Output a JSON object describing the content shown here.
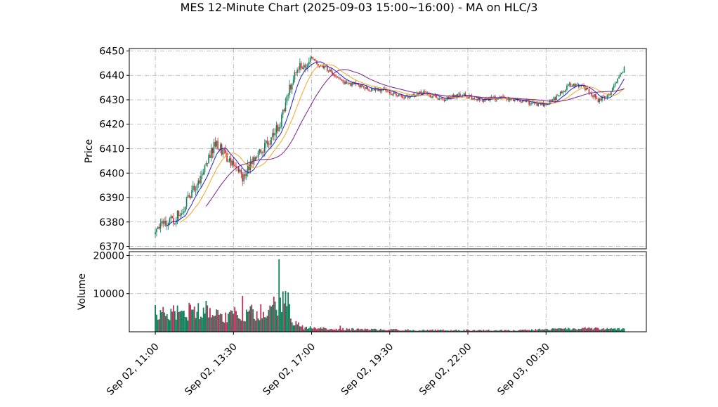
{
  "chart_data": {
    "type": "candlestick",
    "title": "MES 12-Minute Chart (2025-09-03 15:00~16:00) - MA on HLC/3",
    "price_panel": {
      "ylabel": "Price",
      "ylim": [
        6369,
        6451
      ],
      "yticks": [
        6370,
        6380,
        6390,
        6400,
        6410,
        6420,
        6430,
        6440,
        6450
      ],
      "grid": true
    },
    "volume_panel": {
      "ylabel": "Volume",
      "ylim": [
        0,
        21000
      ],
      "yticks": [
        10000,
        20000
      ],
      "ytick_labels": [
        "10000",
        "20000"
      ],
      "grid": true
    },
    "x_ticks": [
      {
        "index": 0,
        "label": "Sep 02, 11:00"
      },
      {
        "index": 60,
        "label": "Sep 02, 13:30"
      },
      {
        "index": 120,
        "label": "Sep 02, 17:00"
      },
      {
        "index": 180,
        "label": "Sep 02, 19:30"
      },
      {
        "index": 240,
        "label": "Sep 02, 22:00"
      },
      {
        "index": 300,
        "label": "Sep 03, 00:30"
      }
    ],
    "x_range": [
      -20,
      377
    ],
    "bar_count": 361,
    "colors": {
      "up": "#11805b",
      "down": "#d62728",
      "vol_up": "#11805b",
      "vol_down": "#b5325a",
      "ma_fast": "#1f1fd6",
      "ma_mid": "#f5a623",
      "ma_slow": "#7a1f8a"
    },
    "price_keypoints": [
      [
        0,
        6375
      ],
      [
        8,
        6380
      ],
      [
        15,
        6381
      ],
      [
        22,
        6386
      ],
      [
        30,
        6394
      ],
      [
        36,
        6400
      ],
      [
        42,
        6408
      ],
      [
        46,
        6412
      ],
      [
        52,
        6409
      ],
      [
        58,
        6404
      ],
      [
        64,
        6400
      ],
      [
        68,
        6398
      ],
      [
        72,
        6403
      ],
      [
        78,
        6406
      ],
      [
        85,
        6412
      ],
      [
        90,
        6415
      ],
      [
        96,
        6420
      ],
      [
        100,
        6428
      ],
      [
        104,
        6436
      ],
      [
        108,
        6443
      ],
      [
        114,
        6444
      ],
      [
        120,
        6447
      ],
      [
        126,
        6444
      ],
      [
        134,
        6442
      ],
      [
        145,
        6437
      ],
      [
        155,
        6436
      ],
      [
        165,
        6434
      ],
      [
        175,
        6434
      ],
      [
        190,
        6431
      ],
      [
        205,
        6433
      ],
      [
        220,
        6430
      ],
      [
        235,
        6432
      ],
      [
        250,
        6430
      ],
      [
        265,
        6431
      ],
      [
        280,
        6430
      ],
      [
        292,
        6428
      ],
      [
        300,
        6428
      ],
      [
        310,
        6432
      ],
      [
        318,
        6436
      ],
      [
        325,
        6436
      ],
      [
        332,
        6434
      ],
      [
        340,
        6430
      ],
      [
        348,
        6432
      ],
      [
        355,
        6438
      ],
      [
        360,
        6443
      ]
    ],
    "volume_keypoints": [
      [
        0,
        4500
      ],
      [
        20,
        5200
      ],
      [
        40,
        5500
      ],
      [
        55,
        4200
      ],
      [
        70,
        5000
      ],
      [
        85,
        5500
      ],
      [
        95,
        6500
      ],
      [
        100,
        10000
      ],
      [
        105,
        3000
      ],
      [
        112,
        1200
      ],
      [
        125,
        900
      ],
      [
        140,
        700
      ],
      [
        200,
        450
      ],
      [
        280,
        400
      ],
      [
        300,
        650
      ],
      [
        330,
        850
      ],
      [
        360,
        700
      ]
    ],
    "volume_spikes": [
      {
        "index": 0,
        "value": 7000
      },
      {
        "index": 6,
        "value": 6500
      },
      {
        "index": 17,
        "value": 6900
      },
      {
        "index": 27,
        "value": 7100
      },
      {
        "index": 39,
        "value": 8100
      },
      {
        "index": 67,
        "value": 9400
      },
      {
        "index": 74,
        "value": 7100
      },
      {
        "index": 91,
        "value": 9200
      },
      {
        "index": 95,
        "value": 19000
      },
      {
        "index": 100,
        "value": 10700
      },
      {
        "index": 142,
        "value": 1600
      }
    ]
  }
}
